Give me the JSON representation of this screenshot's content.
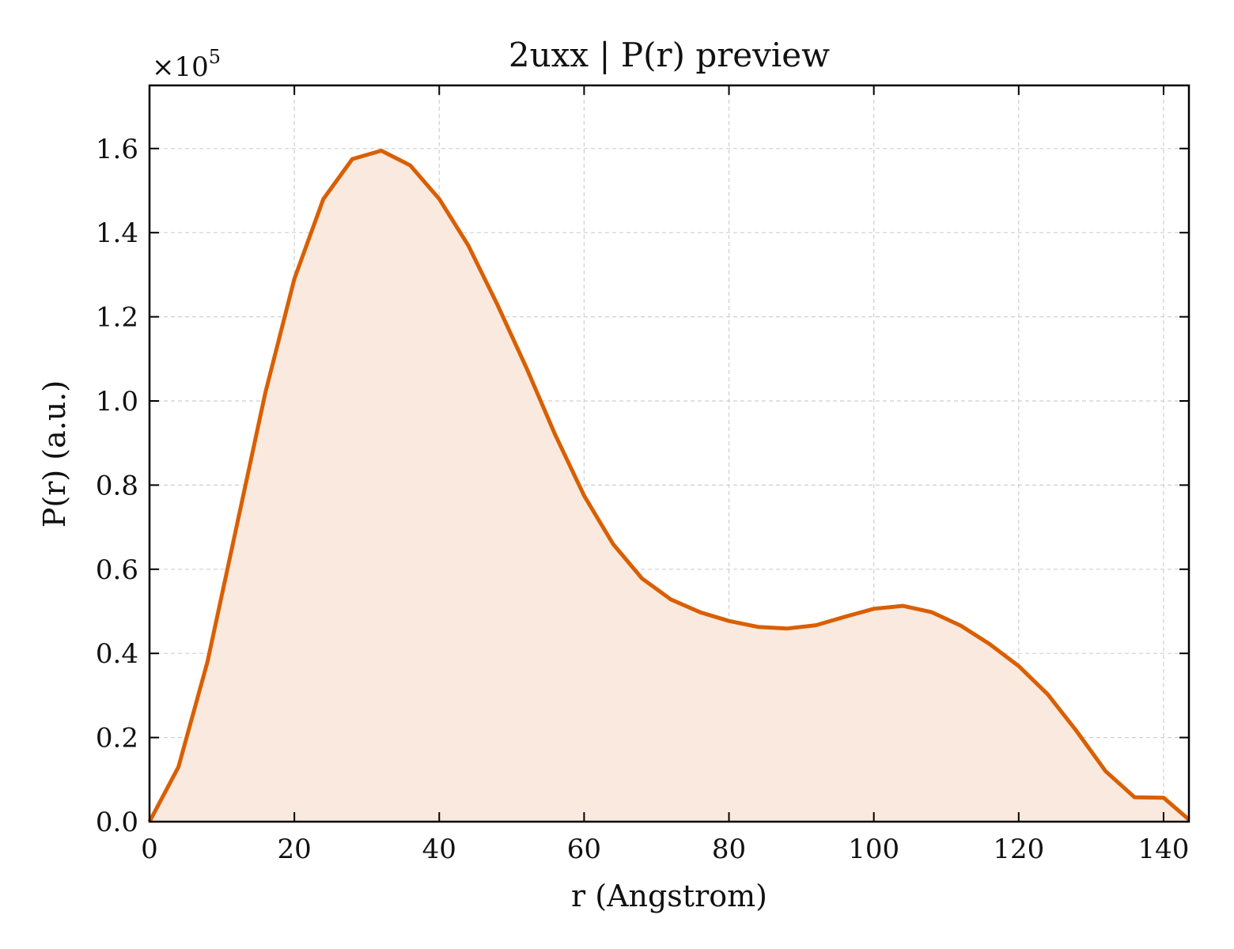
{
  "chart_data": {
    "type": "area",
    "title": "2uxx | P(r) preview",
    "xlabel": "r (Angstrom)",
    "ylabel": "P(r) (a.u.)",
    "y_scale_label": "×10",
    "y_scale_exponent": "5",
    "xlim": [
      0,
      143.5
    ],
    "ylim": [
      0,
      1.75
    ],
    "y_unit_multiplier": 100000,
    "grid": true,
    "x_ticks": [
      0,
      20,
      40,
      60,
      80,
      100,
      120,
      140
    ],
    "y_ticks": [
      0.0,
      0.2,
      0.4,
      0.6,
      0.8,
      1.0,
      1.2,
      1.4,
      1.6
    ],
    "y_tick_labels": [
      "0.0",
      "0.2",
      "0.4",
      "0.6",
      "0.8",
      "1.0",
      "1.2",
      "1.4",
      "1.6"
    ],
    "series": [
      {
        "color": "#d95f02",
        "fill_color": "#f9e9de",
        "x": [
          0,
          4,
          8,
          12,
          16,
          20,
          24,
          28,
          32,
          36,
          40,
          44,
          48,
          52,
          56,
          60,
          64,
          68,
          72,
          76,
          80,
          84,
          88,
          92,
          96,
          100,
          104,
          108,
          112,
          116,
          120,
          124,
          128,
          132,
          136,
          140,
          143.5
        ],
        "y": [
          0.0,
          0.13,
          0.38,
          0.7,
          1.02,
          1.29,
          1.48,
          1.575,
          1.595,
          1.56,
          1.48,
          1.37,
          1.23,
          1.08,
          0.92,
          0.775,
          0.66,
          0.578,
          0.528,
          0.498,
          0.477,
          0.463,
          0.459,
          0.467,
          0.487,
          0.506,
          0.513,
          0.498,
          0.466,
          0.422,
          0.37,
          0.303,
          0.215,
          0.12,
          0.058,
          0.057,
          0.005
        ]
      }
    ]
  }
}
